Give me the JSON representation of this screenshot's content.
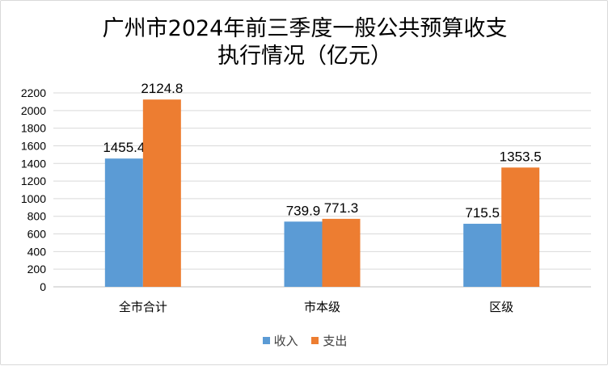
{
  "chart_data": {
    "type": "bar",
    "title": [
      "广州市2024年前三季度一般公共预算收支",
      "执行情况（亿元）"
    ],
    "categories": [
      "全市合计",
      "市本级",
      "区级"
    ],
    "series": [
      {
        "name": "收入",
        "values": [
          1455.4,
          739.9,
          715.5
        ],
        "labels": [
          "1455.4",
          "739.9",
          "715.5"
        ],
        "color": "#5b9bd5"
      },
      {
        "name": "支出",
        "values": [
          2124.8,
          771.3,
          1353.5
        ],
        "labels": [
          "2124.8",
          "771.3",
          "1353.5"
        ],
        "color": "#ed7d31"
      }
    ],
    "yticks": [
      0,
      200,
      400,
      600,
      800,
      1000,
      1200,
      1400,
      1600,
      1800,
      2000,
      2200
    ],
    "ylim": [
      0,
      2200
    ],
    "xlabel": "",
    "ylabel": "",
    "grid": true,
    "legend_position": "bottom"
  }
}
